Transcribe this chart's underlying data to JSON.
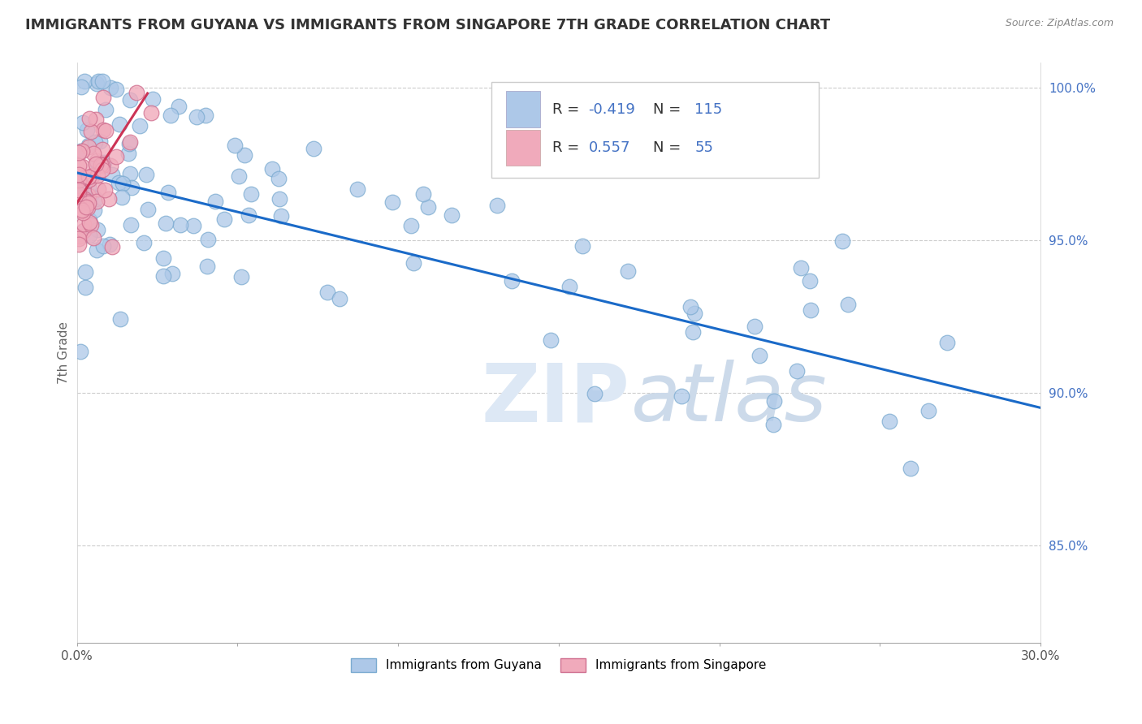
{
  "title": "IMMIGRANTS FROM GUYANA VS IMMIGRANTS FROM SINGAPORE 7TH GRADE CORRELATION CHART",
  "source": "Source: ZipAtlas.com",
  "ylabel": "7th Grade",
  "x_min": 0.0,
  "x_max": 0.3,
  "y_min": 0.818,
  "y_max": 1.008,
  "y_ticks": [
    0.85,
    0.9,
    0.95,
    1.0
  ],
  "y_tick_labels": [
    "85.0%",
    "90.0%",
    "95.0%",
    "100.0%"
  ],
  "guyana_color": "#adc8e8",
  "singapore_color": "#f0aabb",
  "guyana_edge": "#7aaad0",
  "singapore_edge": "#d07090",
  "trend_blue": "#1a6ac8",
  "trend_pink": "#cc3355",
  "R_guyana": -0.419,
  "N_guyana": 115,
  "R_singapore": 0.557,
  "N_singapore": 55,
  "background_color": "#ffffff",
  "grid_color": "#cccccc",
  "legend_label_guyana": "Immigrants from Guyana",
  "legend_label_singapore": "Immigrants from Singapore",
  "blue_line_y0": 0.972,
  "blue_line_y1": 0.895,
  "pink_line_y0": 0.962,
  "pink_line_y1": 0.998,
  "pink_line_x1": 0.022
}
